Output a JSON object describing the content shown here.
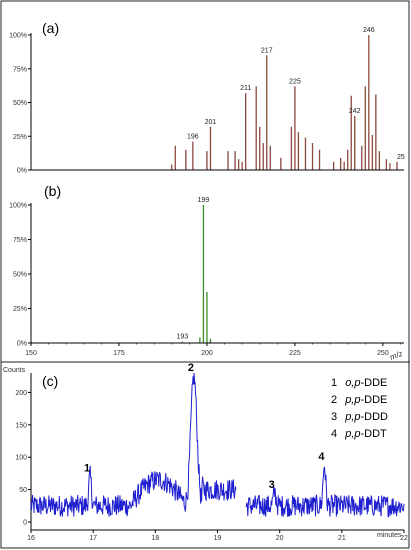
{
  "chart_data": [
    {
      "type": "bar",
      "panel_label": "(a)",
      "color": "#8b4a3c",
      "xlim": [
        150,
        256
      ],
      "ylim": [
        0,
        100
      ],
      "yticks": [
        "0%",
        "25%",
        "50%",
        "75%",
        "100%"
      ],
      "peak_labels": [
        "196",
        "201",
        "211",
        "217",
        "225",
        "242",
        "246",
        "25"
      ],
      "peaks": [
        {
          "mz": 190,
          "v": 4
        },
        {
          "mz": 191,
          "v": 18
        },
        {
          "mz": 194,
          "v": 15
        },
        {
          "mz": 196,
          "v": 21
        },
        {
          "mz": 200,
          "v": 14
        },
        {
          "mz": 201,
          "v": 32
        },
        {
          "mz": 206,
          "v": 14
        },
        {
          "mz": 208,
          "v": 14
        },
        {
          "mz": 209,
          "v": 8
        },
        {
          "mz": 210,
          "v": 6
        },
        {
          "mz": 211,
          "v": 57
        },
        {
          "mz": 214,
          "v": 62
        },
        {
          "mz": 215,
          "v": 32
        },
        {
          "mz": 216,
          "v": 20
        },
        {
          "mz": 217,
          "v": 85
        },
        {
          "mz": 218,
          "v": 18
        },
        {
          "mz": 221,
          "v": 9
        },
        {
          "mz": 224,
          "v": 32
        },
        {
          "mz": 225,
          "v": 62
        },
        {
          "mz": 226,
          "v": 28
        },
        {
          "mz": 228,
          "v": 24
        },
        {
          "mz": 230,
          "v": 20
        },
        {
          "mz": 232,
          "v": 15
        },
        {
          "mz": 236,
          "v": 6
        },
        {
          "mz": 238,
          "v": 9
        },
        {
          "mz": 239,
          "v": 6
        },
        {
          "mz": 240,
          "v": 15
        },
        {
          "mz": 241,
          "v": 55
        },
        {
          "mz": 242,
          "v": 40
        },
        {
          "mz": 244,
          "v": 18
        },
        {
          "mz": 245,
          "v": 62
        },
        {
          "mz": 246,
          "v": 100
        },
        {
          "mz": 247,
          "v": 26
        },
        {
          "mz": 248,
          "v": 56
        },
        {
          "mz": 249,
          "v": 14
        },
        {
          "mz": 251,
          "v": 8
        },
        {
          "mz": 252,
          "v": 5
        },
        {
          "mz": 254,
          "v": 6
        }
      ]
    },
    {
      "type": "bar",
      "panel_label": "(b)",
      "color": "#3a8a2a",
      "xlim": [
        150,
        256
      ],
      "ylim": [
        0,
        100
      ],
      "yticks": [
        "0%",
        "25%",
        "50%",
        "75%",
        "100%"
      ],
      "xticks": [
        "150",
        "175",
        "200",
        "225",
        "250"
      ],
      "xlabel": "m/z",
      "peak_labels": [
        "193",
        "199"
      ],
      "peaks": [
        {
          "mz": 193,
          "v": 1
        },
        {
          "mz": 198,
          "v": 4
        },
        {
          "mz": 199,
          "v": 100
        },
        {
          "mz": 200,
          "v": 37
        },
        {
          "mz": 201,
          "v": 3
        }
      ]
    },
    {
      "type": "line",
      "panel_label": "(c)",
      "color": "#1f1fd0",
      "ylabel": "Counts",
      "xlabel": "minutes",
      "xlim": [
        16,
        22
      ],
      "ylim": [
        0,
        230
      ],
      "xticks": [
        "16",
        "17",
        "18",
        "19",
        "20",
        "21",
        "22"
      ],
      "yticks": [
        "0",
        "50",
        "100",
        "150",
        "200"
      ],
      "gap": [
        19.3,
        19.45
      ],
      "peaks": [
        {
          "label": "1",
          "rt": 16.95,
          "counts": 70
        },
        {
          "label": "2",
          "rt": 18.62,
          "counts": 225
        },
        {
          "label": "3",
          "rt": 19.92,
          "counts": 45
        },
        {
          "label": "4",
          "rt": 20.72,
          "counts": 88
        }
      ],
      "legend": [
        {
          "num": "1",
          "prefix": "o,p",
          "suffix": "-DDE"
        },
        {
          "num": "2",
          "prefix": "p,p",
          "suffix": "-DDE"
        },
        {
          "num": "3",
          "prefix": "p,p",
          "suffix": "-DDD"
        },
        {
          "num": "4",
          "prefix": "p,p",
          "suffix": "-DDT"
        }
      ]
    }
  ]
}
